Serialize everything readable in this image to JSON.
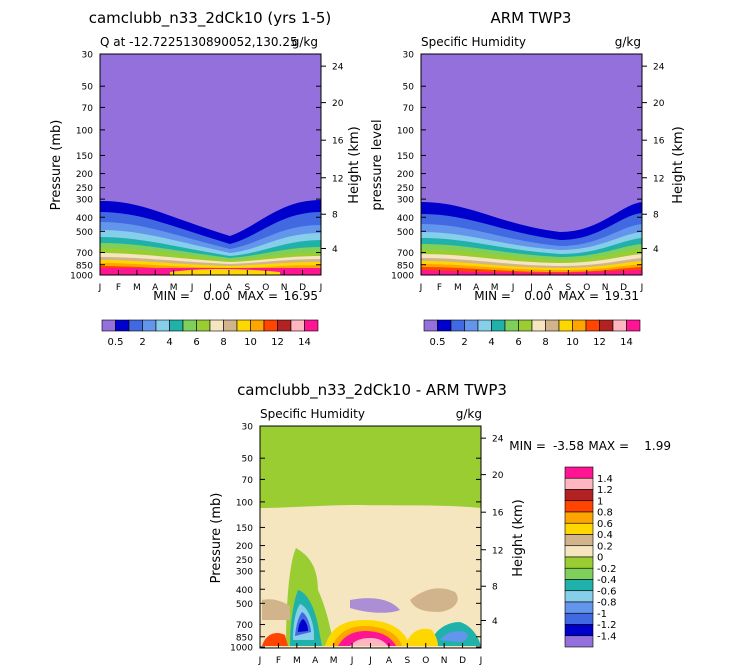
{
  "chart_data": [
    {
      "type": "heatmap",
      "title": "camclubb_n33_2dCk10 (yrs 1-5)",
      "subtitle": "Q at -12.7225130890052,130.25",
      "unit_label": "g/kg",
      "ylabel": "Pressure (mb)",
      "right_label": "Height (km)",
      "x_ticks": [
        "J",
        "F",
        "M",
        "A",
        "M",
        "J",
        "J",
        "A",
        "S",
        "O",
        "N",
        "D",
        "J"
      ],
      "y_ticks": [
        "30",
        "50",
        "70",
        "100",
        "150",
        "200",
        "250",
        "300",
        "400",
        "500",
        "700",
        "850",
        "1000"
      ],
      "height_ticks": [
        "24",
        "20",
        "16",
        "12",
        "8",
        "4"
      ],
      "stats": {
        "min_label": "MIN =",
        "min": "0.00",
        "max_label": "MAX =",
        "max": "16.95"
      },
      "colorbar_labels": [
        "0.5",
        "2",
        "4",
        "6",
        "8",
        "10",
        "12",
        "14"
      ]
    },
    {
      "type": "heatmap",
      "title": "ARM TWP3",
      "subtitle": "Specific Humidity",
      "unit_label": "g/kg",
      "ylabel": "pressure level",
      "right_label": "Height (km)",
      "x_ticks": [
        "J",
        "F",
        "M",
        "A",
        "M",
        "J",
        "J",
        "A",
        "S",
        "O",
        "N",
        "D",
        "J"
      ],
      "y_ticks": [
        "30",
        "50",
        "70",
        "100",
        "150",
        "200",
        "250",
        "300",
        "400",
        "500",
        "700",
        "850",
        "1000"
      ],
      "height_ticks": [
        "24",
        "20",
        "16",
        "12",
        "8",
        "4"
      ],
      "stats": {
        "min_label": "MIN =",
        "min": "0.00",
        "max_label": "MAX =",
        "max": "19.31"
      },
      "colorbar_labels": [
        "0.5",
        "2",
        "4",
        "6",
        "8",
        "10",
        "12",
        "14"
      ]
    },
    {
      "type": "heatmap",
      "title": "camclubb_n33_2dCk10 - ARM TWP3",
      "subtitle": "Specific Humidity",
      "unit_label": "g/kg",
      "ylabel": "Pressure (mb)",
      "right_label": "Height (km)",
      "x_ticks": [
        "J",
        "F",
        "M",
        "A",
        "M",
        "J",
        "J",
        "A",
        "S",
        "O",
        "N",
        "D",
        "J"
      ],
      "y_ticks": [
        "30",
        "50",
        "70",
        "100",
        "150",
        "200",
        "250",
        "300",
        "400",
        "500",
        "700",
        "850",
        "1000"
      ],
      "height_ticks": [
        "24",
        "20",
        "16",
        "12",
        "8",
        "4"
      ],
      "stats": {
        "min_label": "MIN =",
        "min": "-3.58",
        "max_label": "MAX =",
        "max": "1.99"
      },
      "colorbar_labels": [
        "1.4",
        "1.2",
        "1",
        "0.8",
        "0.6",
        "0.4",
        "0.2",
        "0",
        "-0.2",
        "-0.4",
        "-0.6",
        "-0.8",
        "-1",
        "-1.2",
        "-1.4"
      ]
    }
  ],
  "palette": {
    "abs": [
      "#9370db",
      "#0000cd",
      "#4169e1",
      "#6495ed",
      "#87ceeb",
      "#20b2aa",
      "#7fd05a",
      "#9acd32",
      "#f5e6c0",
      "#d2b48c",
      "#ffd700",
      "#ffa500",
      "#ff4500",
      "#b22222",
      "#ffb6c1",
      "#ff1493"
    ],
    "diff": [
      "#ff1493",
      "#ffb6c1",
      "#b22222",
      "#ff4500",
      "#ffa500",
      "#ffd700",
      "#d2b48c",
      "#f5e6c0",
      "#9acd32",
      "#7fd05a",
      "#20b2aa",
      "#87ceeb",
      "#6495ed",
      "#4169e1",
      "#0000cd",
      "#9370db"
    ]
  }
}
